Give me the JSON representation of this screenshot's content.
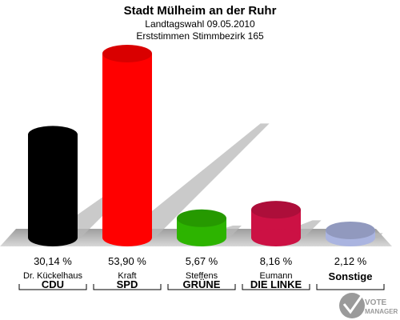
{
  "chart_data": {
    "type": "bar",
    "title": "Stadt Mülheim an der Ruhr",
    "subtitle_lines": [
      "Landtagswahl 09.05.2010",
      "Erststimmen Stimmbezirk 165"
    ],
    "categories": [
      "CDU",
      "SPD",
      "GRÜNE",
      "DIE LINKE",
      "Sonstige"
    ],
    "candidates": [
      "Dr. Kückelhaus",
      "Kraft",
      "Steffens",
      "Eumann",
      ""
    ],
    "values": [
      30.14,
      53.9,
      5.67,
      8.16,
      2.12
    ],
    "value_labels": [
      "30,14 %",
      "53,90 %",
      "5,67 %",
      "8,16 %",
      "2,12 %"
    ],
    "colors": [
      "#000000",
      "#ff0000",
      "#2db400",
      "#cc1144",
      "#aab4e0"
    ],
    "ylim": [
      0,
      53.9
    ],
    "grid": false,
    "legend": "none"
  },
  "watermark": {
    "line1": "VOTE",
    "line2": "MANAGER"
  }
}
